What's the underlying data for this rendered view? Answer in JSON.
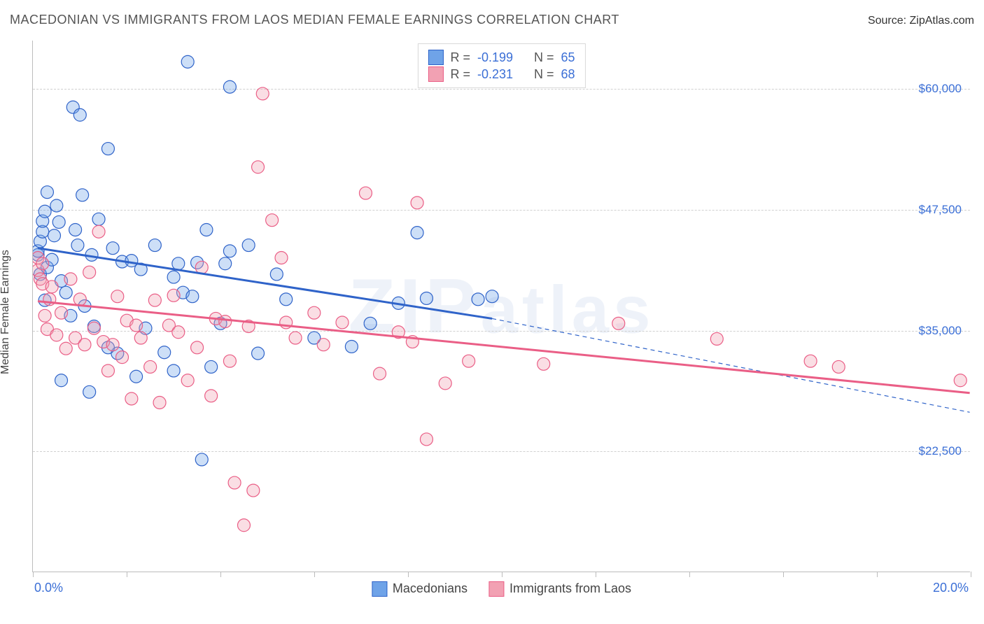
{
  "title": "MACEDONIAN VS IMMIGRANTS FROM LAOS MEDIAN FEMALE EARNINGS CORRELATION CHART",
  "source_label": "Source: ",
  "source_value": "ZipAtlas.com",
  "y_axis_label": "Median Female Earnings",
  "watermark": "ZIPatlas",
  "chart": {
    "type": "scatter-with-regression",
    "background_color": "#ffffff",
    "grid_color": "#d0d0d0",
    "axis_color": "#bcbcbc",
    "tick_label_color": "#3b6fd6",
    "xlim": [
      0,
      20
    ],
    "ylim": [
      10000,
      65000
    ],
    "y_ticks": [
      {
        "value": 22500,
        "label": "$22,500"
      },
      {
        "value": 35000,
        "label": "$35,000"
      },
      {
        "value": 47500,
        "label": "$47,500"
      },
      {
        "value": 60000,
        "label": "$60,000"
      }
    ],
    "x_tick_positions": [
      0,
      2,
      4,
      6,
      8,
      10,
      12,
      14,
      16,
      18,
      20
    ],
    "x_axis_labels": {
      "left": "0.0%",
      "right": "20.0%"
    },
    "marker_radius": 9,
    "marker_fill_opacity": 0.35,
    "marker_stroke_width": 1.2,
    "line_width_solid": 3,
    "line_width_dashed": 1.2,
    "dash_pattern": "6 5"
  },
  "series": [
    {
      "id": "macedonians",
      "label": "Macedonians",
      "color": "#6fa3e8",
      "line_color": "#2f63c9",
      "R": "-0.199",
      "N": "65",
      "regression": {
        "x1": 0.1,
        "y1": 43500,
        "x2": 9.8,
        "y2": 36200
      },
      "extrapolation": {
        "x1": 9.8,
        "y1": 36200,
        "x2": 20.0,
        "y2": 26500
      },
      "points": [
        [
          0.1,
          42800
        ],
        [
          0.1,
          43200
        ],
        [
          0.15,
          44200
        ],
        [
          0.15,
          40800
        ],
        [
          0.2,
          45200
        ],
        [
          0.2,
          46300
        ],
        [
          0.25,
          47300
        ],
        [
          0.25,
          38100
        ],
        [
          0.3,
          41500
        ],
        [
          0.3,
          49300
        ],
        [
          0.4,
          42300
        ],
        [
          0.45,
          44800
        ],
        [
          0.5,
          47900
        ],
        [
          0.55,
          46200
        ],
        [
          0.6,
          40100
        ],
        [
          0.7,
          38900
        ],
        [
          0.8,
          36500
        ],
        [
          0.85,
          58100
        ],
        [
          0.9,
          45400
        ],
        [
          0.95,
          43800
        ],
        [
          1.0,
          57300
        ],
        [
          1.05,
          49000
        ],
        [
          1.1,
          37500
        ],
        [
          1.2,
          28600
        ],
        [
          1.25,
          42800
        ],
        [
          1.3,
          35400
        ],
        [
          1.4,
          46500
        ],
        [
          1.6,
          53800
        ],
        [
          1.7,
          43500
        ],
        [
          1.8,
          32600
        ],
        [
          1.9,
          42100
        ],
        [
          2.1,
          42200
        ],
        [
          2.3,
          41300
        ],
        [
          2.4,
          35200
        ],
        [
          2.6,
          43800
        ],
        [
          2.8,
          32700
        ],
        [
          3.0,
          40500
        ],
        [
          3.1,
          41900
        ],
        [
          3.2,
          38900
        ],
        [
          3.3,
          62800
        ],
        [
          3.4,
          38500
        ],
        [
          3.5,
          42000
        ],
        [
          3.6,
          21600
        ],
        [
          3.7,
          45400
        ],
        [
          3.8,
          31200
        ],
        [
          4.0,
          35700
        ],
        [
          4.1,
          41900
        ],
        [
          4.2,
          43200
        ],
        [
          4.2,
          60200
        ],
        [
          4.6,
          43800
        ],
        [
          4.8,
          32600
        ],
        [
          5.2,
          40800
        ],
        [
          5.4,
          38200
        ],
        [
          6.0,
          34200
        ],
        [
          6.8,
          33300
        ],
        [
          7.2,
          35700
        ],
        [
          7.8,
          37800
        ],
        [
          8.2,
          45100
        ],
        [
          8.4,
          38300
        ],
        [
          9.5,
          38200
        ],
        [
          9.8,
          38500
        ],
        [
          1.6,
          33200
        ],
        [
          2.2,
          30200
        ],
        [
          0.6,
          29800
        ],
        [
          3.0,
          30800
        ]
      ]
    },
    {
      "id": "laos",
      "label": "Immigrants from Laos",
      "color": "#f2a1b3",
      "line_color": "#ea5e86",
      "R": "-0.231",
      "N": "68",
      "regression": {
        "x1": 0.1,
        "y1": 38000,
        "x2": 20.0,
        "y2": 28500
      },
      "extrapolation": null,
      "points": [
        [
          0.1,
          41200
        ],
        [
          0.1,
          42500
        ],
        [
          0.15,
          40300
        ],
        [
          0.2,
          39800
        ],
        [
          0.2,
          41900
        ],
        [
          0.25,
          36500
        ],
        [
          0.3,
          35100
        ],
        [
          0.35,
          38200
        ],
        [
          0.4,
          39500
        ],
        [
          0.5,
          34500
        ],
        [
          0.6,
          36800
        ],
        [
          0.7,
          33100
        ],
        [
          0.8,
          40300
        ],
        [
          0.9,
          34200
        ],
        [
          1.0,
          38200
        ],
        [
          1.1,
          33500
        ],
        [
          1.2,
          41000
        ],
        [
          1.3,
          35200
        ],
        [
          1.4,
          45200
        ],
        [
          1.5,
          33800
        ],
        [
          1.6,
          30800
        ],
        [
          1.7,
          33500
        ],
        [
          1.8,
          38500
        ],
        [
          1.9,
          32200
        ],
        [
          2.0,
          36000
        ],
        [
          2.1,
          27900
        ],
        [
          2.2,
          35500
        ],
        [
          2.3,
          34200
        ],
        [
          2.5,
          31200
        ],
        [
          2.6,
          38100
        ],
        [
          2.7,
          27500
        ],
        [
          2.9,
          35500
        ],
        [
          3.0,
          38600
        ],
        [
          3.1,
          34800
        ],
        [
          3.3,
          29800
        ],
        [
          3.5,
          33200
        ],
        [
          3.6,
          41500
        ],
        [
          3.8,
          28200
        ],
        [
          3.9,
          36200
        ],
        [
          4.1,
          35900
        ],
        [
          4.2,
          31800
        ],
        [
          4.3,
          19200
        ],
        [
          4.5,
          14800
        ],
        [
          4.6,
          35400
        ],
        [
          4.7,
          18400
        ],
        [
          4.8,
          51900
        ],
        [
          4.9,
          59500
        ],
        [
          5.1,
          46400
        ],
        [
          5.3,
          42500
        ],
        [
          5.4,
          35800
        ],
        [
          5.6,
          34200
        ],
        [
          6.0,
          36800
        ],
        [
          6.2,
          33500
        ],
        [
          6.6,
          35800
        ],
        [
          7.1,
          49200
        ],
        [
          7.4,
          30500
        ],
        [
          7.8,
          34800
        ],
        [
          8.1,
          33800
        ],
        [
          8.2,
          48200
        ],
        [
          8.4,
          23700
        ],
        [
          8.8,
          29500
        ],
        [
          9.3,
          31800
        ],
        [
          10.9,
          31500
        ],
        [
          12.5,
          35700
        ],
        [
          14.6,
          34100
        ],
        [
          16.6,
          31800
        ],
        [
          17.2,
          31200
        ],
        [
          19.8,
          29800
        ]
      ]
    }
  ],
  "legend_stats": {
    "r_label": "R =",
    "n_label": "N ="
  }
}
